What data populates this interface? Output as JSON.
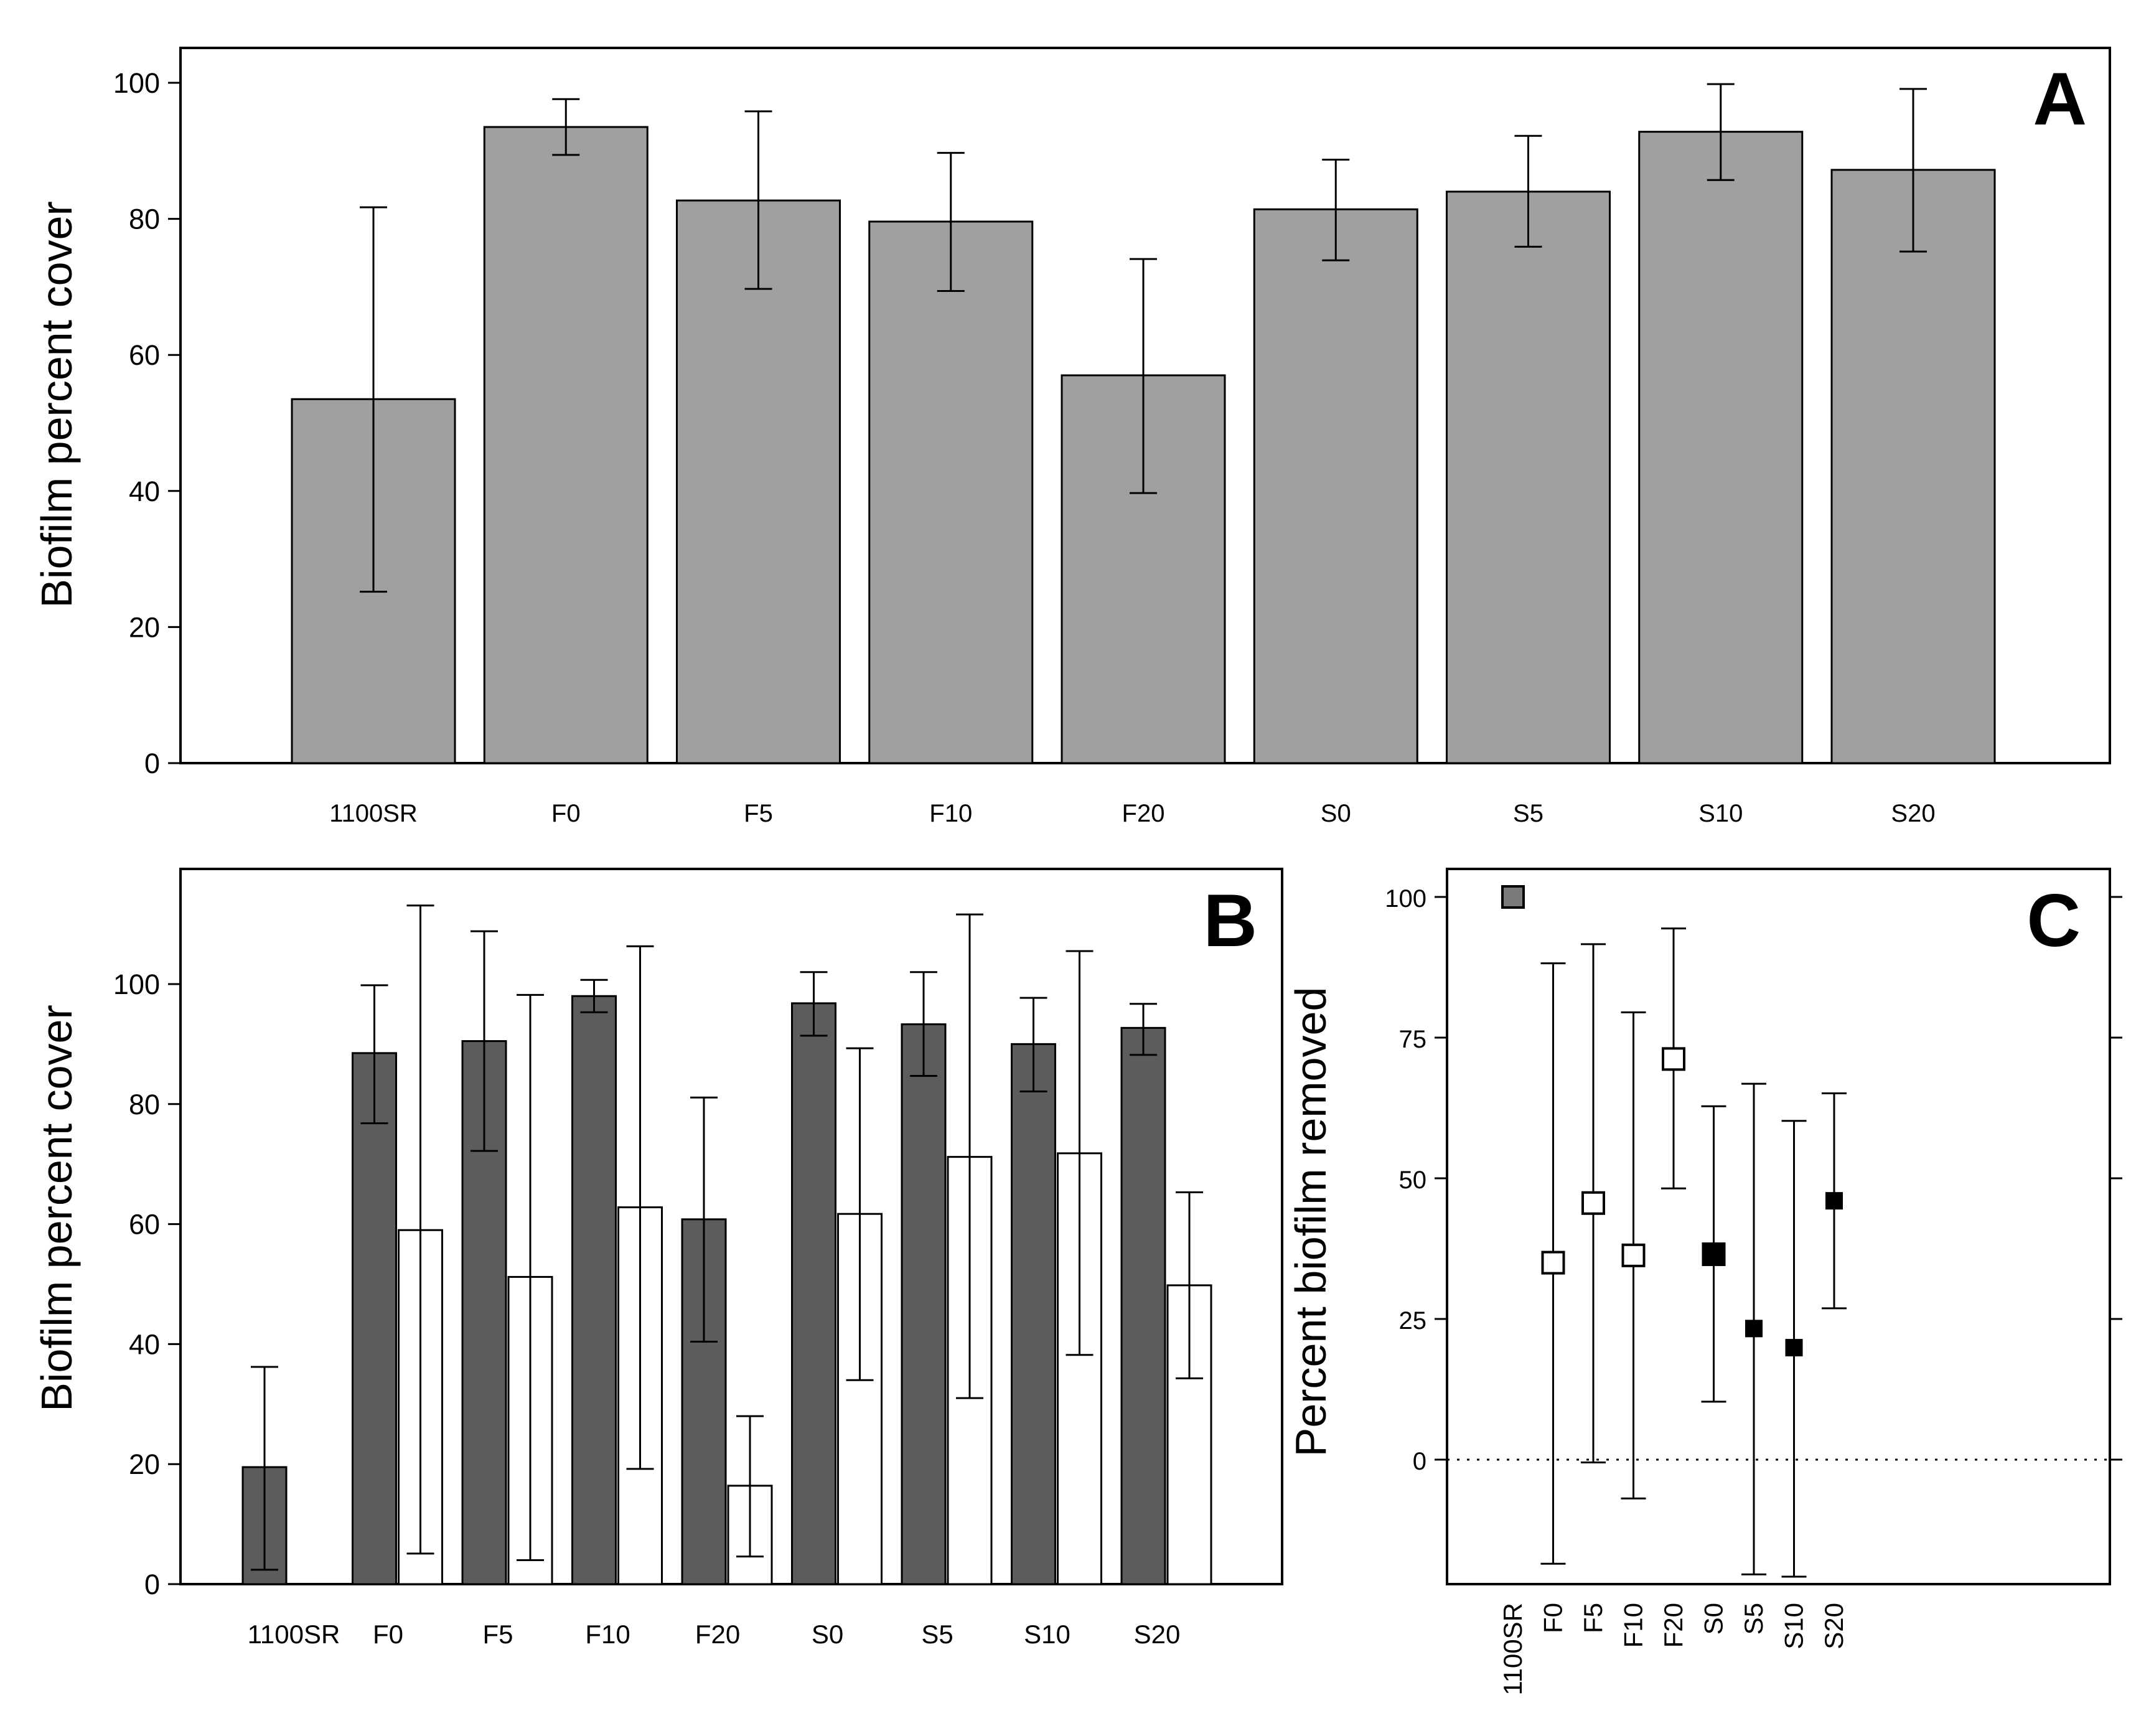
{
  "chart_data": [
    {
      "panel": "A",
      "type": "bar",
      "ylabel": "Biofilm percent cover",
      "xlabel": "",
      "ylim": [
        0,
        100
      ],
      "yticks": [
        0,
        20,
        40,
        60,
        80,
        100
      ],
      "categories": [
        "1100SR",
        "F0",
        "F5",
        "F10",
        "F20",
        "S0",
        "S5",
        "S10",
        "S20"
      ],
      "series": [
        {
          "name": "Biofilm cover",
          "color": "#a0a0a0",
          "values": [
            53.5,
            93.5,
            82.7,
            79.6,
            57,
            81.4,
            84,
            92.8,
            87.2
          ],
          "err_low": [
            25.2,
            89.4,
            69.7,
            69.4,
            39.7,
            73.9,
            75.9,
            85.7,
            75.2
          ],
          "err_high": [
            81.7,
            97.6,
            95.8,
            89.7,
            74.1,
            88.7,
            92.2,
            99.8,
            99.1
          ]
        }
      ]
    },
    {
      "panel": "B",
      "type": "bar",
      "ylabel": "Biofilm percent cover",
      "xlabel": "",
      "ylim": [
        0,
        120
      ],
      "yticks": [
        0,
        20,
        40,
        60,
        80,
        100
      ],
      "categories": [
        "1100SR",
        "F0",
        "F5",
        "F10",
        "F20",
        "S0",
        "S5",
        "S10",
        "S20"
      ],
      "series": [
        {
          "name": "dark",
          "color": "#5c5c5c",
          "values": [
            19.5,
            88.5,
            90.5,
            98,
            60.8,
            96.8,
            93.3,
            90,
            92.7
          ],
          "err_low": [
            2.4,
            76.8,
            72.2,
            95.3,
            40.4,
            91.4,
            84.7,
            82.1,
            88.2
          ],
          "err_high": [
            36.2,
            99.8,
            108.8,
            100.7,
            81.1,
            102,
            102,
            97.7,
            96.7
          ]
        },
        {
          "name": "white",
          "color": "#ffffff",
          "values": [
            0,
            59,
            51.2,
            62.8,
            16.4,
            61.7,
            71.2,
            71.8,
            49.8
          ],
          "err_low": [
            null,
            5.1,
            4,
            19.2,
            4.6,
            34,
            31,
            38.2,
            34.3
          ],
          "err_high": [
            null,
            113.1,
            98.2,
            106.3,
            28,
            89.3,
            111.6,
            105.5,
            65.3
          ]
        }
      ]
    },
    {
      "panel": "C",
      "type": "scatter",
      "ylabel": "Percent biofilm removed",
      "xlabel": "",
      "ylim": [
        -22,
        105
      ],
      "yticks": [
        0,
        25,
        50,
        75,
        100
      ],
      "reference_line": 0,
      "categories": [
        "1100SR",
        "F0",
        "F5",
        "F10",
        "F20",
        "S0",
        "S5",
        "S10",
        "S20"
      ],
      "points": [
        {
          "category": "1100SR",
          "y": 100,
          "err_low": null,
          "err_high": null,
          "marker": "gray-square"
        },
        {
          "category": "F0",
          "y": 35,
          "err_low": -18.5,
          "err_high": 88.2,
          "marker": "open-square"
        },
        {
          "category": "F5",
          "y": 45.6,
          "err_low": -0.5,
          "err_high": 91.6,
          "marker": "open-square"
        },
        {
          "category": "F10",
          "y": 36.3,
          "err_low": -6.9,
          "err_high": 79.5,
          "marker": "open-square"
        },
        {
          "category": "F20",
          "y": 71.2,
          "err_low": 48.2,
          "err_high": 94.4,
          "marker": "open-square"
        },
        {
          "category": "S0",
          "y": 36.5,
          "err_low": 10.3,
          "err_high": 62.8,
          "marker": "filled-square-large"
        },
        {
          "category": "S5",
          "y": 23.3,
          "err_low": -20.4,
          "err_high": 66.8,
          "marker": "filled-square"
        },
        {
          "category": "S10",
          "y": 19.9,
          "err_low": -20.8,
          "err_high": 60.2,
          "marker": "filled-square"
        },
        {
          "category": "S20",
          "y": 46,
          "err_low": 26.9,
          "err_high": 65.1,
          "marker": "filled-square"
        }
      ]
    }
  ],
  "panel_letters": {
    "a": "A",
    "b": "B",
    "c": "C"
  },
  "axis_titles": {
    "a_y": "Biofilm percent cover",
    "b_y": "Biofilm percent cover",
    "c_y": "Percent biofilm removed"
  },
  "colors": {
    "bar_light": "#a0a0a0",
    "bar_dark": "#5c5c5c",
    "bar_white": "#ffffff",
    "marker_gray": "#7a7a7a",
    "ink": "#000000"
  }
}
